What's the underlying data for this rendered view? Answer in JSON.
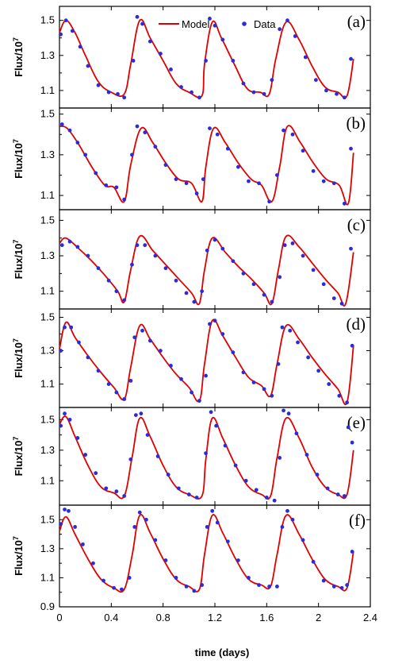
{
  "chart_data": {
    "type": "line",
    "xlabel": "time (days)",
    "ylabel_base": "Flux/10",
    "ylabel_exp": "7",
    "xlim": [
      0,
      2.4
    ],
    "x_ticks": [
      "0",
      "0.4",
      "0.8",
      "1.2",
      "1.6",
      "2",
      "2.4"
    ],
    "legend": {
      "placement": "top-center",
      "model": "Model",
      "data": "Data"
    },
    "colors": {
      "model": "#e00000",
      "data": "#2b2bd8"
    },
    "panels": [
      {
        "label": "(a)",
        "ylim": [
          1.0,
          1.58
        ],
        "y_ticks": [
          "1.1",
          "1.3",
          "1.5"
        ],
        "peaks": [
          0.05,
          0.62,
          1.18,
          1.75
        ],
        "cycle_end": 2.27,
        "series": [
          {
            "name": "Model",
            "x": [
              0,
              0.05,
              0.12,
              0.2,
              0.3,
              0.4,
              0.5,
              0.55,
              0.62,
              0.7,
              0.8,
              0.9,
              1.0,
              1.1,
              1.12,
              1.18,
              1.25,
              1.35,
              1.45,
              1.55,
              1.62,
              1.67,
              1.75,
              1.85,
              1.95,
              2.05,
              2.15,
              2.22,
              2.27
            ],
            "y": [
              1.43,
              1.5,
              1.43,
              1.3,
              1.15,
              1.09,
              1.08,
              1.25,
              1.5,
              1.4,
              1.27,
              1.14,
              1.09,
              1.07,
              1.25,
              1.49,
              1.4,
              1.25,
              1.11,
              1.09,
              1.08,
              1.28,
              1.49,
              1.39,
              1.24,
              1.12,
              1.09,
              1.07,
              1.28
            ]
          },
          {
            "name": "Data",
            "x": [
              0.01,
              0.05,
              0.1,
              0.16,
              0.22,
              0.3,
              0.38,
              0.45,
              0.5,
              0.57,
              0.6,
              0.64,
              0.7,
              0.78,
              0.86,
              0.94,
              1.02,
              1.08,
              1.13,
              1.16,
              1.2,
              1.26,
              1.34,
              1.42,
              1.5,
              1.58,
              1.64,
              1.7,
              1.76,
              1.82,
              1.9,
              1.98,
              2.06,
              2.14,
              2.2,
              2.25
            ],
            "y": [
              1.42,
              1.5,
              1.44,
              1.35,
              1.24,
              1.13,
              1.09,
              1.08,
              1.06,
              1.27,
              1.52,
              1.48,
              1.38,
              1.31,
              1.22,
              1.12,
              1.09,
              1.06,
              1.27,
              1.51,
              1.47,
              1.39,
              1.27,
              1.14,
              1.09,
              1.08,
              1.16,
              1.45,
              1.5,
              1.41,
              1.29,
              1.16,
              1.1,
              1.08,
              1.06,
              1.28
            ]
          }
        ]
      },
      {
        "label": "(b)",
        "ylim": [
          1.03,
          1.53
        ],
        "y_ticks": [
          "1.1",
          "1.3",
          "1.5"
        ],
        "peaks": [
          0.06,
          0.63,
          1.19,
          1.76
        ],
        "cycle_end": 2.27,
        "series": [
          {
            "name": "Model",
            "x": [
              0,
              0.06,
              0.15,
              0.25,
              0.35,
              0.42,
              0.5,
              0.55,
              0.63,
              0.72,
              0.82,
              0.92,
              1.02,
              1.1,
              1.13,
              1.19,
              1.28,
              1.38,
              1.48,
              1.56,
              1.64,
              1.7,
              1.76,
              1.86,
              1.96,
              2.06,
              2.16,
              2.23,
              2.27
            ],
            "y": [
              1.44,
              1.43,
              1.35,
              1.24,
              1.15,
              1.14,
              1.07,
              1.25,
              1.43,
              1.36,
              1.26,
              1.18,
              1.16,
              1.07,
              1.24,
              1.43,
              1.36,
              1.26,
              1.18,
              1.15,
              1.07,
              1.24,
              1.44,
              1.36,
              1.26,
              1.18,
              1.15,
              1.06,
              1.31
            ]
          },
          {
            "name": "Data",
            "x": [
              0.02,
              0.08,
              0.14,
              0.2,
              0.28,
              0.36,
              0.44,
              0.5,
              0.56,
              0.6,
              0.66,
              0.74,
              0.82,
              0.9,
              0.98,
              1.06,
              1.11,
              1.16,
              1.22,
              1.3,
              1.38,
              1.46,
              1.54,
              1.62,
              1.68,
              1.73,
              1.8,
              1.88,
              1.96,
              2.04,
              2.12,
              2.2,
              2.25
            ],
            "y": [
              1.45,
              1.42,
              1.36,
              1.3,
              1.21,
              1.15,
              1.14,
              1.08,
              1.3,
              1.44,
              1.41,
              1.34,
              1.25,
              1.18,
              1.16,
              1.11,
              1.18,
              1.43,
              1.4,
              1.33,
              1.24,
              1.17,
              1.16,
              1.07,
              1.2,
              1.42,
              1.4,
              1.32,
              1.22,
              1.17,
              1.16,
              1.06,
              1.33
            ]
          }
        ]
      },
      {
        "label": "(c)",
        "ylim": [
          1.0,
          1.56
        ],
        "y_ticks": [
          "1.1",
          "1.3",
          "1.5"
        ],
        "peaks": [
          0.05,
          0.62,
          1.18,
          1.75
        ],
        "cycle_end": 2.27,
        "series": [
          {
            "name": "Model",
            "x": [
              0,
              0.05,
              0.15,
              0.25,
              0.35,
              0.45,
              0.5,
              0.55,
              0.62,
              0.72,
              0.82,
              0.92,
              1.02,
              1.08,
              1.12,
              1.18,
              1.28,
              1.38,
              1.48,
              1.58,
              1.64,
              1.69,
              1.75,
              1.85,
              1.95,
              2.05,
              2.15,
              2.21,
              2.27
            ],
            "y": [
              1.37,
              1.4,
              1.34,
              1.27,
              1.19,
              1.1,
              1.04,
              1.22,
              1.41,
              1.33,
              1.25,
              1.17,
              1.09,
              1.03,
              1.22,
              1.4,
              1.32,
              1.24,
              1.17,
              1.09,
              1.03,
              1.22,
              1.41,
              1.35,
              1.26,
              1.17,
              1.09,
              1.03,
              1.32
            ]
          },
          {
            "name": "Data",
            "x": [
              0.02,
              0.08,
              0.14,
              0.22,
              0.3,
              0.38,
              0.44,
              0.5,
              0.56,
              0.6,
              0.66,
              0.74,
              0.82,
              0.9,
              0.98,
              1.04,
              1.1,
              1.14,
              1.2,
              1.26,
              1.34,
              1.42,
              1.5,
              1.58,
              1.64,
              1.7,
              1.74,
              1.8,
              1.88,
              1.96,
              2.04,
              2.12,
              2.18,
              2.25
            ],
            "y": [
              1.36,
              1.38,
              1.35,
              1.3,
              1.23,
              1.16,
              1.1,
              1.05,
              1.25,
              1.36,
              1.36,
              1.3,
              1.23,
              1.16,
              1.09,
              1.04,
              1.1,
              1.33,
              1.39,
              1.34,
              1.27,
              1.2,
              1.14,
              1.08,
              1.04,
              1.18,
              1.36,
              1.37,
              1.3,
              1.22,
              1.14,
              1.06,
              1.03,
              1.34
            ]
          }
        ]
      },
      {
        "label": "(d)",
        "ylim": [
          0.96,
          1.55
        ],
        "y_ticks": [
          "1.1",
          "1.3",
          "1.5"
        ],
        "peaks": [
          0.05,
          0.62,
          1.18,
          1.75
        ],
        "cycle_end": 2.27,
        "series": [
          {
            "name": "Model",
            "x": [
              0,
              0.05,
              0.12,
              0.22,
              0.32,
              0.42,
              0.5,
              0.55,
              0.62,
              0.7,
              0.8,
              0.9,
              1.0,
              1.08,
              1.12,
              1.18,
              1.26,
              1.36,
              1.46,
              1.56,
              1.63,
              1.68,
              1.75,
              1.85,
              1.95,
              2.05,
              2.15,
              2.22,
              2.27
            ],
            "y": [
              1.31,
              1.47,
              1.38,
              1.27,
              1.17,
              1.08,
              1.01,
              1.2,
              1.45,
              1.37,
              1.26,
              1.16,
              1.08,
              1.0,
              1.22,
              1.48,
              1.39,
              1.26,
              1.14,
              1.09,
              1.03,
              1.22,
              1.45,
              1.37,
              1.26,
              1.16,
              1.07,
              0.99,
              1.33
            ]
          },
          {
            "name": "Data",
            "x": [
              0.01,
              0.04,
              0.09,
              0.15,
              0.22,
              0.3,
              0.38,
              0.44,
              0.5,
              0.55,
              0.58,
              0.64,
              0.7,
              0.78,
              0.86,
              0.94,
              1.02,
              1.08,
              1.13,
              1.16,
              1.2,
              1.26,
              1.34,
              1.42,
              1.5,
              1.58,
              1.64,
              1.69,
              1.72,
              1.78,
              1.84,
              1.92,
              2.0,
              2.08,
              2.16,
              2.22,
              2.26
            ],
            "y": [
              1.3,
              1.44,
              1.44,
              1.35,
              1.26,
              1.18,
              1.1,
              1.05,
              1.01,
              1.12,
              1.38,
              1.42,
              1.36,
              1.3,
              1.21,
              1.13,
              1.05,
              1.0,
              1.15,
              1.46,
              1.48,
              1.4,
              1.29,
              1.17,
              1.11,
              1.07,
              1.03,
              1.22,
              1.44,
              1.42,
              1.35,
              1.26,
              1.18,
              1.1,
              1.03,
              0.99,
              1.33
            ]
          }
        ]
      },
      {
        "label": "(e)",
        "ylim": [
          0.94,
          1.58
        ],
        "y_ticks": [
          "1.1",
          "1.3",
          "1.5"
        ],
        "peaks": [
          0.05,
          0.62,
          1.18,
          1.75
        ],
        "cycle_end": 2.27,
        "series": [
          {
            "name": "Model",
            "x": [
              0,
              0.05,
              0.12,
              0.22,
              0.32,
              0.42,
              0.5,
              0.56,
              0.62,
              0.7,
              0.8,
              0.9,
              1.0,
              1.1,
              1.13,
              1.18,
              1.26,
              1.36,
              1.46,
              1.56,
              1.63,
              1.68,
              1.75,
              1.85,
              1.95,
              2.05,
              2.15,
              2.22,
              2.27
            ],
            "y": [
              1.47,
              1.52,
              1.39,
              1.2,
              1.06,
              1.02,
              1.0,
              1.25,
              1.51,
              1.39,
              1.2,
              1.06,
              1.01,
              1.0,
              1.24,
              1.51,
              1.38,
              1.2,
              1.06,
              1.01,
              1.0,
              1.25,
              1.51,
              1.38,
              1.19,
              1.06,
              1.01,
              1.01,
              1.3
            ]
          },
          {
            "name": "Data",
            "x": [
              0.01,
              0.04,
              0.08,
              0.14,
              0.2,
              0.28,
              0.36,
              0.44,
              0.5,
              0.55,
              0.59,
              0.63,
              0.68,
              0.76,
              0.84,
              0.92,
              1.0,
              1.06,
              1.13,
              1.17,
              1.21,
              1.28,
              1.36,
              1.44,
              1.52,
              1.6,
              1.66,
              1.7,
              1.73,
              1.77,
              1.83,
              1.91,
              1.99,
              2.07,
              2.15,
              2.2,
              2.23,
              2.26
            ],
            "y": [
              1.46,
              1.54,
              1.5,
              1.38,
              1.27,
              1.15,
              1.05,
              1.03,
              1.0,
              1.24,
              1.53,
              1.54,
              1.4,
              1.26,
              1.14,
              1.05,
              1.01,
              0.99,
              1.28,
              1.55,
              1.46,
              1.33,
              1.2,
              1.1,
              1.04,
              0.99,
              0.97,
              1.25,
              1.56,
              1.54,
              1.41,
              1.27,
              1.14,
              1.05,
              1.01,
              1.0,
              1.45,
              1.35
            ]
          }
        ]
      },
      {
        "label": "(f)",
        "ylim": [
          0.9,
          1.6
        ],
        "y_ticks": [
          "0.9",
          "1.1",
          "1.3",
          "1.5"
        ],
        "peaks": [
          0.05,
          0.62,
          1.18,
          1.75
        ],
        "cycle_end": 2.27,
        "series": [
          {
            "name": "Model",
            "x": [
              0,
              0.05,
              0.12,
              0.22,
              0.32,
              0.42,
              0.5,
              0.56,
              0.62,
              0.7,
              0.8,
              0.9,
              1.0,
              1.08,
              1.12,
              1.18,
              1.26,
              1.36,
              1.46,
              1.56,
              1.63,
              1.68,
              1.75,
              1.85,
              1.95,
              2.05,
              2.15,
              2.22,
              2.27
            ],
            "y": [
              1.42,
              1.52,
              1.4,
              1.23,
              1.09,
              1.03,
              1.02,
              1.25,
              1.53,
              1.41,
              1.23,
              1.09,
              1.04,
              1.02,
              1.26,
              1.53,
              1.41,
              1.23,
              1.09,
              1.05,
              1.04,
              1.26,
              1.53,
              1.4,
              1.23,
              1.09,
              1.04,
              1.03,
              1.28
            ]
          },
          {
            "name": "Data",
            "x": [
              0.01,
              0.04,
              0.07,
              0.12,
              0.18,
              0.26,
              0.34,
              0.42,
              0.48,
              0.54,
              0.58,
              0.62,
              0.67,
              0.74,
              0.82,
              0.9,
              0.98,
              1.04,
              1.1,
              1.14,
              1.18,
              1.22,
              1.3,
              1.38,
              1.46,
              1.54,
              1.62,
              1.68,
              1.72,
              1.76,
              1.8,
              1.88,
              1.96,
              2.04,
              2.12,
              2.18,
              2.22,
              2.26
            ],
            "y": [
              1.47,
              1.57,
              1.56,
              1.45,
              1.33,
              1.2,
              1.08,
              1.03,
              1.02,
              1.1,
              1.45,
              1.55,
              1.5,
              1.36,
              1.22,
              1.1,
              1.04,
              1.01,
              1.05,
              1.45,
              1.56,
              1.48,
              1.35,
              1.22,
              1.1,
              1.05,
              1.04,
              1.04,
              1.45,
              1.56,
              1.5,
              1.36,
              1.21,
              1.08,
              1.04,
              1.03,
              1.05,
              1.28
            ]
          }
        ]
      }
    ]
  }
}
